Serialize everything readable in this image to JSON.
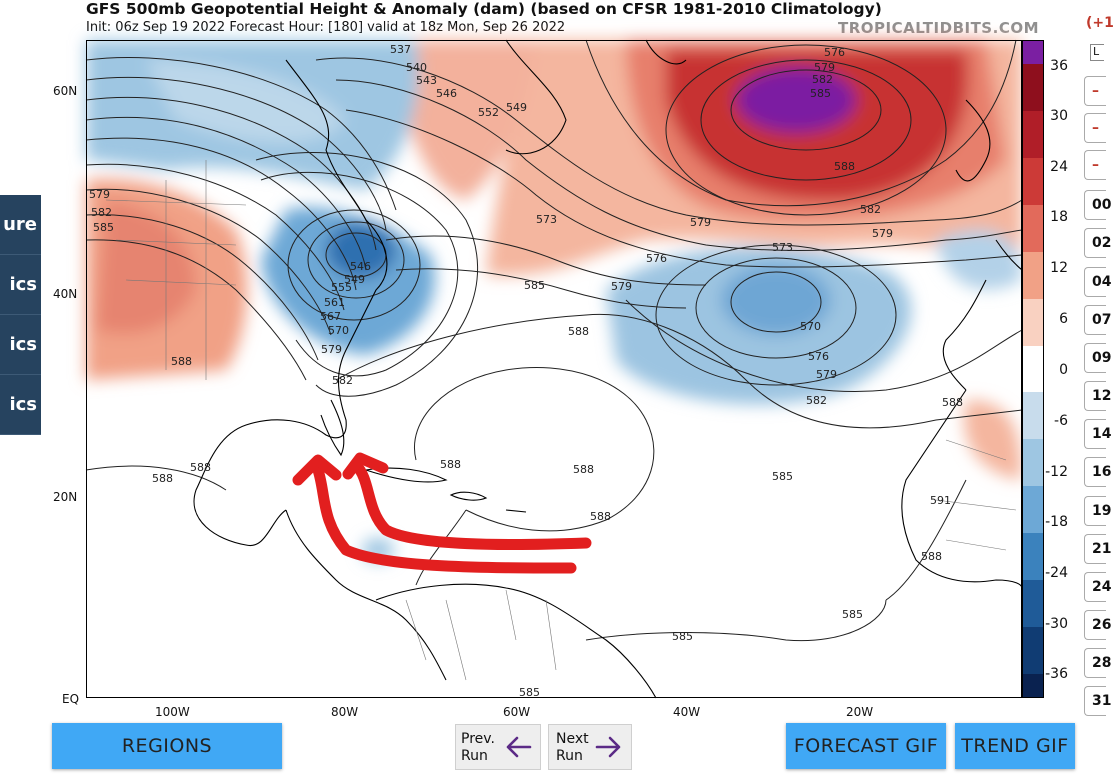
{
  "header": {
    "title": "GFS 500mb Geopotential Height & Anomaly (dam) (based on CFSR 1981-2010 Climatology)",
    "subtitle": "Init: 06z Sep 19 2022   Forecast Hour: [180]   valid at 18z Mon, Sep 26 2022",
    "brand": "TROPICALTIDBITS.COM"
  },
  "sidenav": {
    "items": [
      {
        "label": "ure"
      },
      {
        "label": "ics"
      },
      {
        "label": "ics"
      },
      {
        "label": "ics"
      }
    ]
  },
  "map": {
    "lat_labels": [
      "60N",
      "40N",
      "20N",
      "EQ"
    ],
    "lon_labels": [
      "100W",
      "80W",
      "60W",
      "40W",
      "20W"
    ],
    "contour_labels": [
      "537",
      "540",
      "543",
      "546",
      "549",
      "552",
      "573",
      "576",
      "579",
      "582",
      "585",
      "588",
      "591",
      "546",
      "549",
      "555",
      "561",
      "567",
      "570",
      "573",
      "576",
      "579",
      "582",
      "585",
      "588",
      "573",
      "576",
      "579",
      "582",
      "585",
      "570",
      "576",
      "579",
      "582"
    ],
    "colorbar": {
      "values": [
        "36",
        "30",
        "24",
        "18",
        "12",
        "6",
        "0",
        "-6",
        "-12",
        "-18",
        "-24",
        "-30",
        "-36"
      ],
      "colors": [
        "#7b1fa2",
        "#8e0f1d",
        "#b01e28",
        "#cc3a37",
        "#e26a5b",
        "#f1a186",
        "#f9d1c1",
        "#ffffff",
        "#c8dcec",
        "#9ec6e2",
        "#6da8d6",
        "#3b82bd",
        "#1f5b98",
        "#103c73",
        "#0a2250"
      ]
    }
  },
  "rightpanel": {
    "top_text": "(+1",
    "small_label": "L",
    "buttons": [
      "–",
      "–",
      "–",
      "00",
      "02",
      "04",
      "07",
      "09",
      "12",
      "14",
      "16",
      "19",
      "21",
      "24",
      "26",
      "28",
      "31"
    ]
  },
  "footer": {
    "regions": "REGIONS",
    "prev": "Prev.\nRun",
    "next": "Next\nRun",
    "forecast_gif": "FORECAST GIF",
    "trend_gif": "TREND GIF"
  }
}
